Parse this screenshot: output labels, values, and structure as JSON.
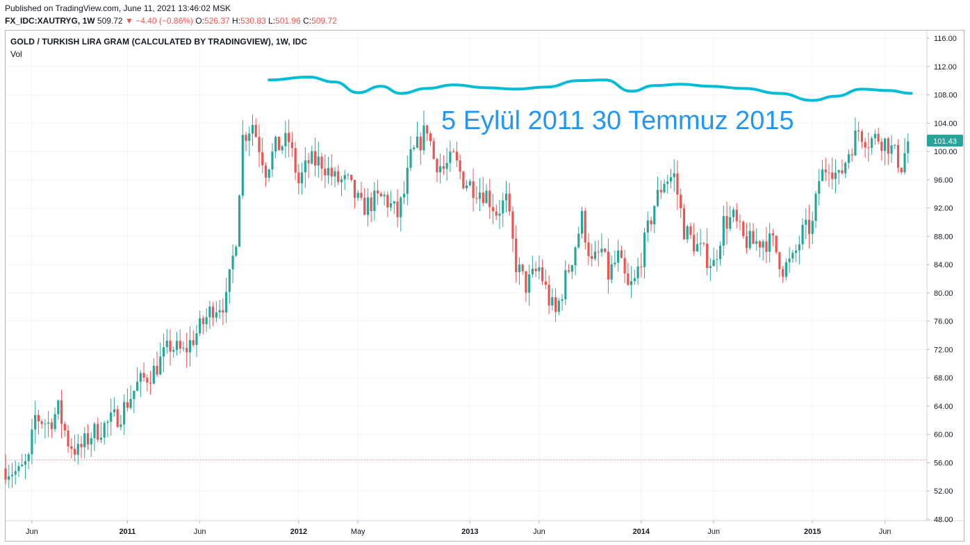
{
  "header": {
    "published": "Published on TradingView.com, June 11, 2021 13:46:02 MSK",
    "symbol": "FX_IDC:XAUTRYG, 1W",
    "last": "509.72",
    "change": "−4.40 (−0.86%)",
    "o_label": "O:",
    "o_value": "526.37",
    "h_label": "H:",
    "h_value": "530.83",
    "l_label": "L:",
    "l_value": "501.96",
    "c_label": "C:",
    "c_value": "509.72"
  },
  "legend": {
    "title": "GOLD / TURKISH LIRA GRAM (CALCULATED BY TRADINGVIEW), 1W, IDC",
    "vol": "Vol"
  },
  "annotation": {
    "text": "5 Eylül 2011 30 Temmuz 2015",
    "color": "#2196f3"
  },
  "colors": {
    "up": "#26a69a",
    "down": "#ef5350",
    "grid": "#f0f3fa",
    "hline": "#ef9a9a",
    "curve": "#00bcd4",
    "axis_text": "#131722"
  },
  "chart_data": {
    "type": "candlestick",
    "title": "GOLD / TURKISH LIRA GRAM (CALCULATED BY TRADINGVIEW), 1W, IDC",
    "ylim": [
      48,
      116
    ],
    "y_ticks": [
      "116.00",
      "112.00",
      "108.00",
      "104.00",
      "100.00",
      "96.00",
      "92.00",
      "88.00",
      "84.00",
      "80.00",
      "76.00",
      "72.00",
      "68.00",
      "64.00",
      "60.00",
      "56.00",
      "52.00",
      "48.00"
    ],
    "x_ticks": [
      {
        "label": "Jun",
        "bold": false,
        "week": 8
      },
      {
        "label": "2011",
        "bold": true,
        "week": 37
      },
      {
        "label": "Jun",
        "bold": false,
        "week": 59
      },
      {
        "label": "2012",
        "bold": true,
        "week": 89
      },
      {
        "label": "May",
        "bold": false,
        "week": 107
      },
      {
        "label": "2013",
        "bold": true,
        "week": 141
      },
      {
        "label": "Jun",
        "bold": false,
        "week": 162
      },
      {
        "label": "2014",
        "bold": true,
        "week": 193
      },
      {
        "label": "Jun",
        "bold": false,
        "week": 215
      },
      {
        "label": "2015",
        "bold": true,
        "week": 245
      },
      {
        "label": "Jun",
        "bold": false,
        "week": 267
      }
    ],
    "last_price": "101.43",
    "reference_level": 56.4,
    "anchors": [
      [
        0,
        55.2
      ],
      [
        4,
        54.5
      ],
      [
        7,
        56.2
      ],
      [
        9,
        62.5
      ],
      [
        13,
        61.5
      ],
      [
        16,
        63.5
      ],
      [
        19,
        59
      ],
      [
        22,
        57.5
      ],
      [
        26,
        60
      ],
      [
        31,
        61.5
      ],
      [
        35,
        63
      ],
      [
        40,
        67
      ],
      [
        45,
        69
      ],
      [
        50,
        72.5
      ],
      [
        54,
        71.5
      ],
      [
        59,
        75
      ],
      [
        63,
        78
      ],
      [
        67,
        78.8
      ],
      [
        70,
        88
      ],
      [
        72,
        102
      ],
      [
        75,
        104
      ],
      [
        79,
        97.5
      ],
      [
        82,
        100.5
      ],
      [
        86,
        101.5
      ],
      [
        89,
        95.5
      ],
      [
        92,
        98.5
      ],
      [
        96,
        98.5
      ],
      [
        100,
        96
      ],
      [
        104,
        95.5
      ],
      [
        108,
        92
      ],
      [
        112,
        93
      ],
      [
        115,
        93.5
      ],
      [
        119,
        91
      ],
      [
        121,
        94
      ],
      [
        123,
        99
      ],
      [
        126,
        101.5
      ],
      [
        128,
        103.5
      ],
      [
        130,
        99
      ],
      [
        133,
        97.5
      ],
      [
        136,
        99
      ],
      [
        139,
        96
      ],
      [
        142,
        95
      ],
      [
        146,
        94
      ],
      [
        149,
        91.5
      ],
      [
        152,
        93
      ],
      [
        155,
        84
      ],
      [
        158,
        81
      ],
      [
        162,
        83.5
      ],
      [
        165,
        79
      ],
      [
        167,
        77
      ],
      [
        170,
        82
      ],
      [
        172,
        85
      ],
      [
        175,
        90.5
      ],
      [
        178,
        84
      ],
      [
        181,
        86
      ],
      [
        183,
        82.5
      ],
      [
        186,
        85
      ],
      [
        189,
        80.5
      ],
      [
        191,
        81.5
      ],
      [
        194,
        87
      ],
      [
        197,
        92.5
      ],
      [
        200,
        96
      ],
      [
        203,
        96.5
      ],
      [
        206,
        89
      ],
      [
        209,
        87
      ],
      [
        212,
        85.5
      ],
      [
        215,
        84
      ],
      [
        218,
        90
      ],
      [
        221,
        90.5
      ],
      [
        224,
        87.5
      ],
      [
        227,
        87
      ],
      [
        230,
        87.5
      ],
      [
        233,
        87
      ],
      [
        236,
        83.5
      ],
      [
        239,
        84.5
      ],
      [
        242,
        88.5
      ],
      [
        245,
        89.5
      ],
      [
        247,
        96
      ],
      [
        250,
        98.5
      ],
      [
        253,
        96
      ],
      [
        256,
        100
      ],
      [
        259,
        103
      ],
      [
        262,
        101.5
      ],
      [
        265,
        102
      ],
      [
        268,
        101
      ],
      [
        270,
        99.5
      ],
      [
        272,
        98
      ],
      [
        274,
        101.4
      ]
    ]
  }
}
